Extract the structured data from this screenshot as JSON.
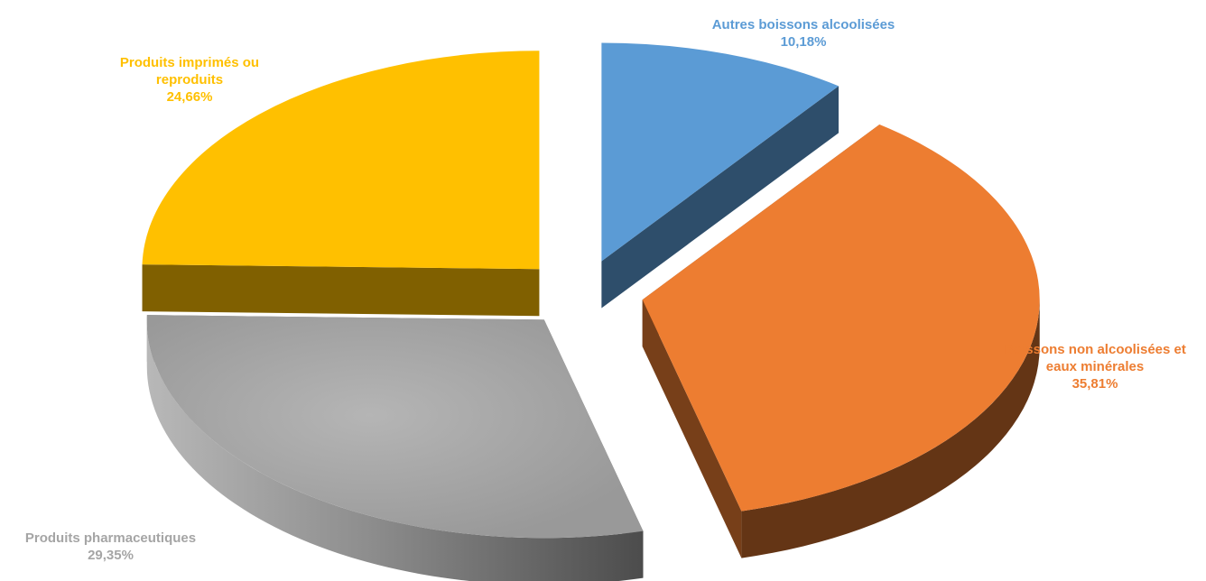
{
  "chart_data": {
    "type": "pie",
    "style": "3d-exploded",
    "categories": [
      "Autres boissons alcoolisées",
      "Boissons non alcoolisées et eaux minérales",
      "Produits pharmaceutiques",
      "Produits imprimés ou reproduits"
    ],
    "values": [
      10.18,
      35.81,
      29.35,
      24.66
    ],
    "value_labels": [
      "10,18%",
      "35,81%",
      "29,35%",
      "24,66%"
    ],
    "colors": [
      "#5B9BD5",
      "#ED7D31",
      "#A5A5A5",
      "#FFC000"
    ],
    "legend": "none"
  },
  "labels": {
    "autres": {
      "line1": "Autres boissons alcoolisées",
      "value": "10,18%"
    },
    "boissons": {
      "line1": "Boissons non alcoolisées et",
      "line2": "eaux minérales",
      "value": "35,81%"
    },
    "pharma": {
      "line1": "Produits pharmaceutiques",
      "value": "29,35%"
    },
    "imprimes": {
      "line1": "Produits imprimés ou",
      "line2": "reproduits",
      "value": "24,66%"
    }
  }
}
